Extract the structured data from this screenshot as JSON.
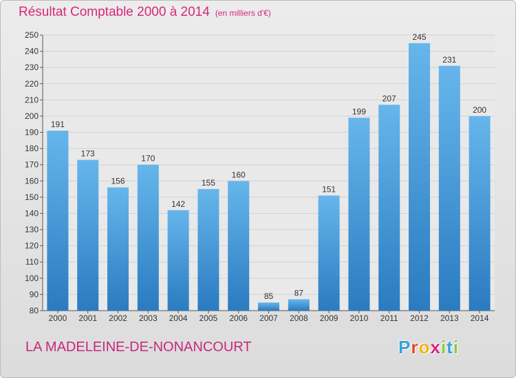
{
  "title": "Résultat Comptable 2000 à 2014",
  "subtitle": "(en milliers d'€)",
  "place_name": "LA MADELEINE-DE-NONANCOURT",
  "logo_letters": [
    {
      "char": "P",
      "color": "#3aa0d6"
    },
    {
      "char": "r",
      "color": "#e0492f"
    },
    {
      "char": "o",
      "color": "#f2b418"
    },
    {
      "char": "x",
      "color": "#d6287a"
    },
    {
      "char": "i",
      "color": "#8cc63f"
    },
    {
      "char": "t",
      "color": "#3aa0d6"
    },
    {
      "char": "i",
      "color": "#8cc63f"
    }
  ],
  "colors": {
    "title": "#d6287a",
    "bar_light": "#66b6ec",
    "bar_dark": "#2a7bc0",
    "plot_bg": "#e9e9e9"
  },
  "chart_data": {
    "type": "bar",
    "categories": [
      "2000",
      "2001",
      "2002",
      "2003",
      "2004",
      "2005",
      "2006",
      "2007",
      "2008",
      "2009",
      "2010",
      "2011",
      "2012",
      "2013",
      "2014"
    ],
    "values": [
      191,
      173,
      156,
      170,
      142,
      155,
      160,
      85,
      87,
      151,
      199,
      207,
      245,
      231,
      200
    ],
    "data_labels": [
      "191",
      "173",
      "156",
      "170",
      "142",
      "155",
      "160",
      "85",
      "87",
      "151",
      "199",
      "207",
      "245",
      "231",
      "200"
    ],
    "ylim": [
      80,
      250
    ],
    "yticks": [
      80,
      90,
      100,
      110,
      120,
      130,
      140,
      150,
      160,
      170,
      180,
      190,
      200,
      210,
      220,
      230,
      240,
      250
    ],
    "grid": true
  }
}
